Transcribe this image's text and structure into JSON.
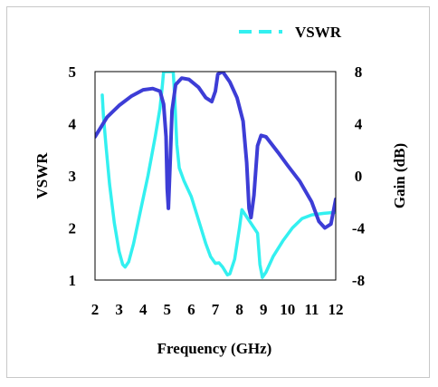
{
  "chart_data": {
    "type": "line",
    "xlabel": "Frequency (GHz)",
    "ylabel": "VSWR",
    "y2label": "Gain (dB)",
    "xlim": [
      2,
      12
    ],
    "ylim": [
      1,
      5
    ],
    "y2lim": [
      -8,
      8
    ],
    "x_ticks": [
      "2",
      "3",
      "4",
      "5",
      "6",
      "7",
      "8",
      "9",
      "10",
      "11",
      "12"
    ],
    "y_ticks": [
      "1",
      "2",
      "3",
      "4",
      "5"
    ],
    "y2_ticks": [
      "-8",
      "-4",
      "0",
      "4",
      "8"
    ],
    "grid": false,
    "legend": {
      "placement": "top-right",
      "entries": [
        "VSWR"
      ]
    },
    "series": [
      {
        "name": "VSWR",
        "axis": "left",
        "color": "#33f0f0",
        "style": "dashed-solid",
        "points": [
          [
            2.3,
            4.55
          ],
          [
            2.35,
            4.15
          ],
          [
            2.45,
            3.6
          ],
          [
            2.6,
            2.85
          ],
          [
            2.8,
            2.1
          ],
          [
            3.0,
            1.55
          ],
          [
            3.15,
            1.3
          ],
          [
            3.25,
            1.25
          ],
          [
            3.4,
            1.35
          ],
          [
            3.6,
            1.7
          ],
          [
            3.9,
            2.35
          ],
          [
            4.2,
            3.0
          ],
          [
            4.5,
            3.75
          ],
          [
            4.7,
            4.3
          ],
          [
            4.8,
            4.75
          ],
          [
            4.85,
            5.0
          ],
          [
            5.25,
            5.0
          ],
          [
            5.3,
            4.6
          ],
          [
            5.4,
            3.6
          ],
          [
            5.5,
            3.15
          ],
          [
            5.7,
            2.9
          ],
          [
            6.0,
            2.6
          ],
          [
            6.3,
            2.15
          ],
          [
            6.6,
            1.7
          ],
          [
            6.8,
            1.45
          ],
          [
            7.0,
            1.32
          ],
          [
            7.15,
            1.33
          ],
          [
            7.3,
            1.25
          ],
          [
            7.5,
            1.1
          ],
          [
            7.6,
            1.12
          ],
          [
            7.8,
            1.4
          ],
          [
            8.0,
            2.0
          ],
          [
            8.1,
            2.35
          ],
          [
            8.75,
            1.9
          ],
          [
            8.85,
            1.3
          ],
          [
            8.95,
            1.05
          ],
          [
            9.1,
            1.15
          ],
          [
            9.4,
            1.45
          ],
          [
            9.8,
            1.75
          ],
          [
            10.2,
            2.0
          ],
          [
            10.6,
            2.18
          ],
          [
            11.0,
            2.25
          ],
          [
            11.5,
            2.28
          ],
          [
            12.0,
            2.3
          ]
        ]
      },
      {
        "name": "Gain",
        "axis": "right",
        "color": "#3d3dd6",
        "style": "solid",
        "points": [
          [
            2.0,
            3.0
          ],
          [
            2.5,
            4.5
          ],
          [
            3.0,
            5.4
          ],
          [
            3.5,
            6.1
          ],
          [
            4.0,
            6.6
          ],
          [
            4.4,
            6.7
          ],
          [
            4.7,
            6.5
          ],
          [
            4.85,
            5.5
          ],
          [
            4.95,
            3.0
          ],
          [
            5.0,
            -1.0
          ],
          [
            5.05,
            -2.5
          ],
          [
            5.12,
            1.0
          ],
          [
            5.2,
            5.0
          ],
          [
            5.35,
            7.0
          ],
          [
            5.6,
            7.5
          ],
          [
            5.9,
            7.4
          ],
          [
            6.3,
            6.8
          ],
          [
            6.6,
            6.0
          ],
          [
            6.85,
            5.7
          ],
          [
            7.0,
            6.5
          ],
          [
            7.1,
            7.8
          ],
          [
            7.3,
            8.0
          ],
          [
            7.6,
            7.2
          ],
          [
            7.9,
            6.0
          ],
          [
            8.15,
            4.2
          ],
          [
            8.3,
            1.0
          ],
          [
            8.4,
            -2.5
          ],
          [
            8.48,
            -3.2
          ],
          [
            8.6,
            -1.5
          ],
          [
            8.75,
            2.3
          ],
          [
            8.9,
            3.1
          ],
          [
            9.1,
            3.0
          ],
          [
            9.6,
            1.8
          ],
          [
            10.0,
            0.8
          ],
          [
            10.5,
            -0.4
          ],
          [
            11.0,
            -2.0
          ],
          [
            11.3,
            -3.5
          ],
          [
            11.55,
            -4.0
          ],
          [
            11.8,
            -3.7
          ],
          [
            12.0,
            -1.8
          ]
        ]
      }
    ]
  }
}
